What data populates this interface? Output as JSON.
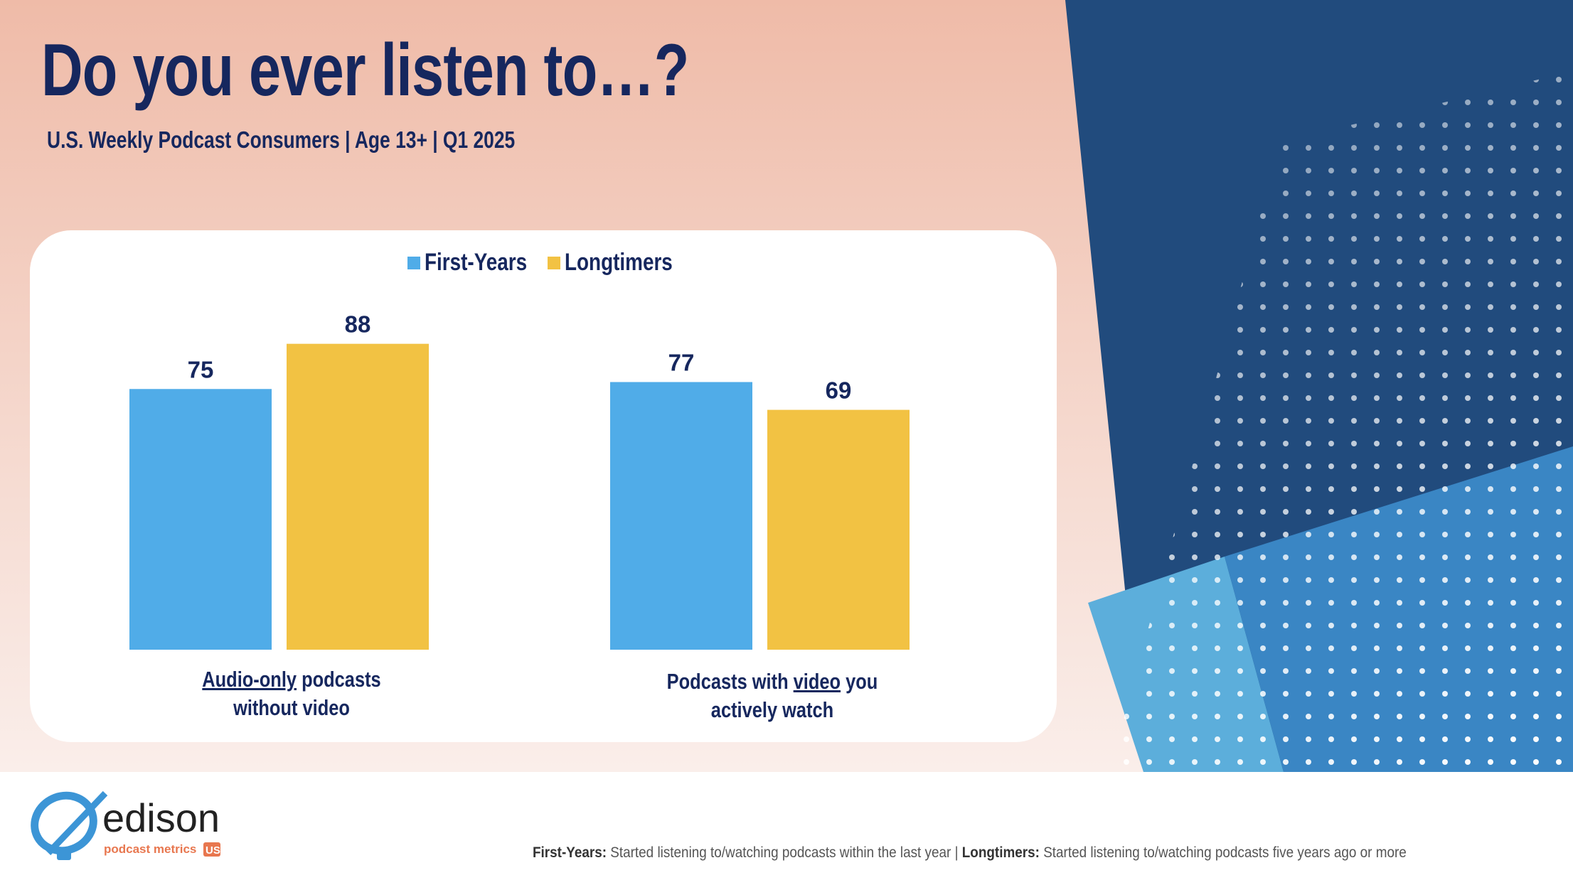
{
  "title": "Do you ever listen to…?",
  "subtitle": "U.S. Weekly Podcast Consumers | Age 13+ | Q1 2025",
  "colors": {
    "first_years": "#50ACE8",
    "longtimers": "#F2C243",
    "text": "#16275E",
    "navy": "#214B7D",
    "blue": "#3A86C4",
    "light_blue": "#5CAEDB"
  },
  "chart_data": {
    "type": "bar",
    "categories": [
      "Audio-only podcasts without video",
      "Podcasts with video you actively watch"
    ],
    "category_parts": [
      {
        "underlined": "Audio-only",
        "rest1": " podcasts",
        "line2": "without video"
      },
      {
        "pre": "Podcasts with ",
        "underlined": "video",
        "rest1": " you",
        "line2": "actively watch"
      }
    ],
    "series": [
      {
        "name": "First-Years",
        "values": [
          75,
          77
        ]
      },
      {
        "name": "Longtimers",
        "values": [
          88,
          69
        ]
      }
    ],
    "ylim": [
      0,
      100
    ],
    "legend": "top-center",
    "grid": false,
    "data_labels": true
  },
  "footer": {
    "first_years_term": "First-Years:",
    "first_years_def": " Started listening to/watching podcasts within the last year",
    "separator": " | ",
    "longtimers_term": "Longtimers:",
    "longtimers_def": " Started listening to/watching podcasts five years ago or more"
  },
  "logo": {
    "name": "edison",
    "tagline": "podcast metrics",
    "badge": "US"
  }
}
